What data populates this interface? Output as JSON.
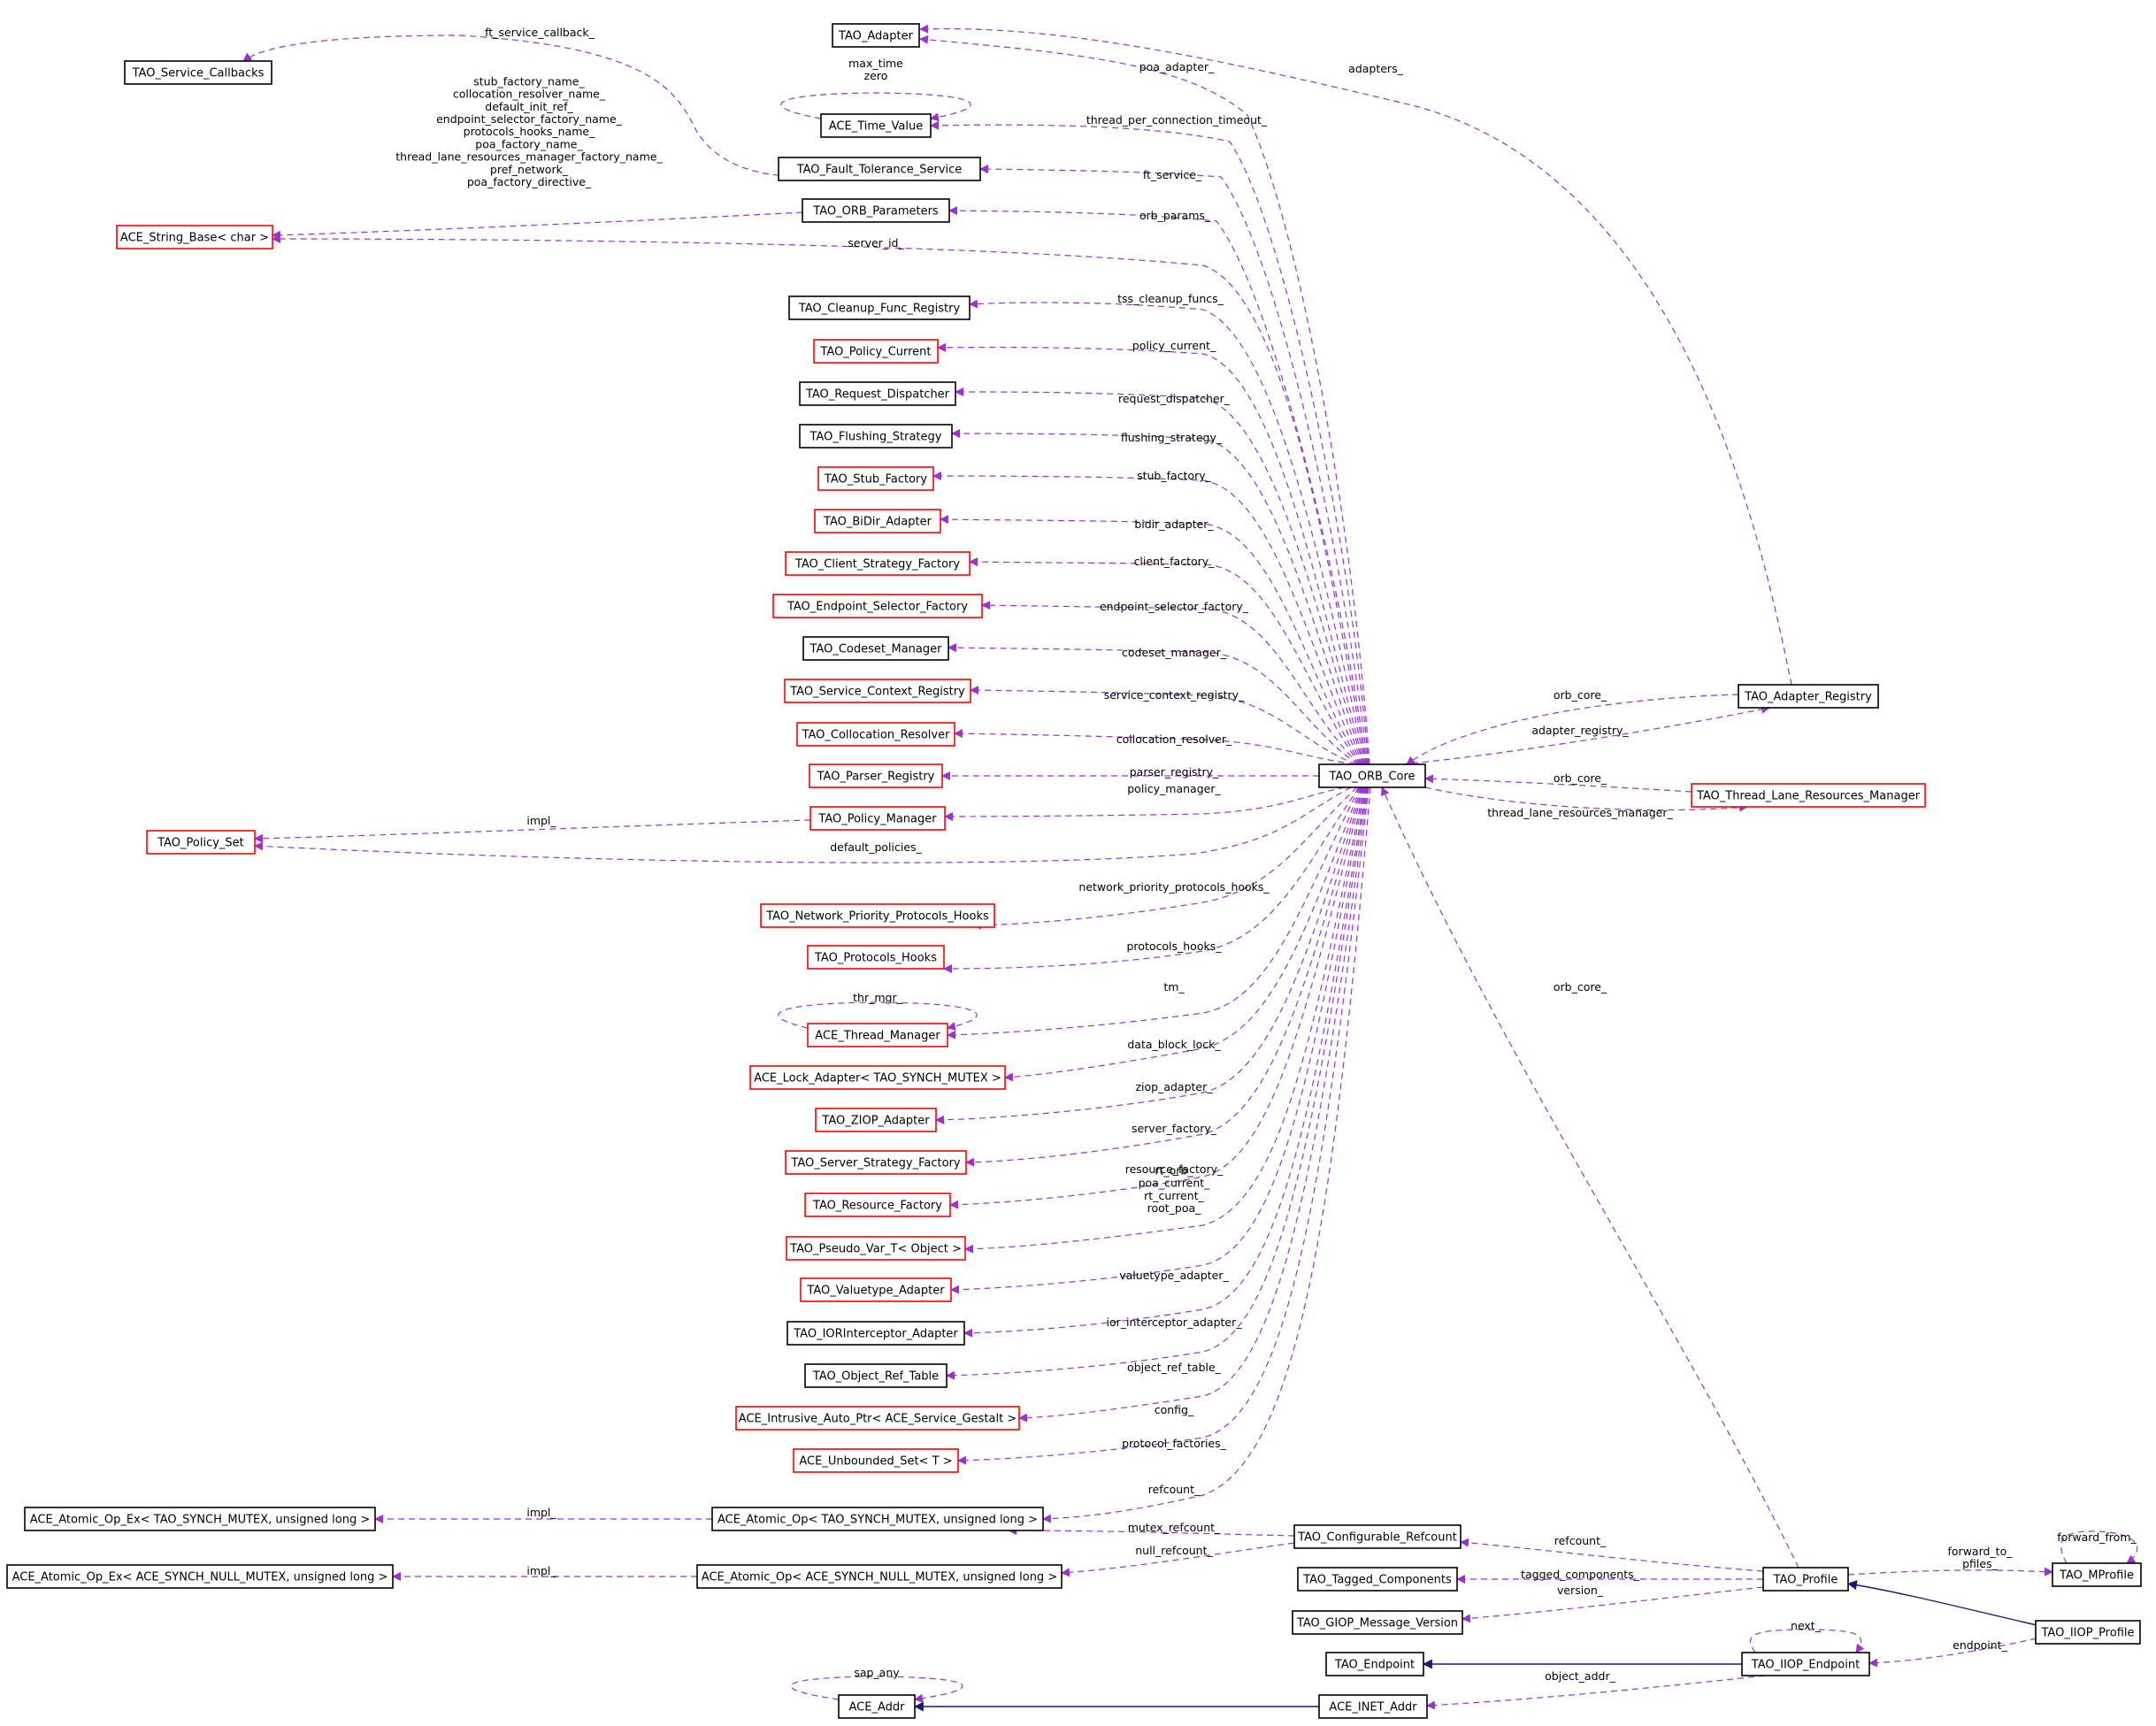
{
  "colors": {
    "border_normal": "#000000",
    "border_truncated": "#ff0000",
    "fill_highlight": "#bfbfbf",
    "usage_edge": "#9a32cd",
    "inheritance_edge": "#191970"
  },
  "nodes": [
    {
      "id": "svc_cb",
      "label": "TAO_Service_Callbacks",
      "style": "normal"
    },
    {
      "id": "adapter",
      "label": "TAO_Adapter",
      "style": "normal"
    },
    {
      "id": "time_value",
      "label": "ACE_Time_Value",
      "style": "normal"
    },
    {
      "id": "ft_service",
      "label": "TAO_Fault_Tolerance_Service",
      "style": "normal"
    },
    {
      "id": "orb_params",
      "label": "TAO_ORB_Parameters",
      "style": "normal"
    },
    {
      "id": "string_base",
      "label": "ACE_String_Base< char >",
      "style": "truncated"
    },
    {
      "id": "cleanup",
      "label": "TAO_Cleanup_Func_Registry",
      "style": "normal"
    },
    {
      "id": "policy_current",
      "label": "TAO_Policy_Current",
      "style": "truncated"
    },
    {
      "id": "req_disp",
      "label": "TAO_Request_Dispatcher",
      "style": "normal"
    },
    {
      "id": "flushing",
      "label": "TAO_Flushing_Strategy",
      "style": "normal"
    },
    {
      "id": "stub_factory",
      "label": "TAO_Stub_Factory",
      "style": "truncated"
    },
    {
      "id": "bidir",
      "label": "TAO_BiDir_Adapter",
      "style": "truncated"
    },
    {
      "id": "client_strat",
      "label": "TAO_Client_Strategy_Factory",
      "style": "truncated"
    },
    {
      "id": "endpoint_sel",
      "label": "TAO_Endpoint_Selector_Factory",
      "style": "truncated"
    },
    {
      "id": "codeset",
      "label": "TAO_Codeset_Manager",
      "style": "normal"
    },
    {
      "id": "svc_ctx",
      "label": "TAO_Service_Context_Registry",
      "style": "truncated"
    },
    {
      "id": "colloc",
      "label": "TAO_Collocation_Resolver",
      "style": "truncated"
    },
    {
      "id": "parser",
      "label": "TAO_Parser_Registry",
      "style": "truncated"
    },
    {
      "id": "policy_mgr",
      "label": "TAO_Policy_Manager",
      "style": "truncated"
    },
    {
      "id": "policy_set",
      "label": "TAO_Policy_Set",
      "style": "truncated"
    },
    {
      "id": "net_prio",
      "label": "TAO_Network_Priority_Protocols_Hooks",
      "style": "truncated"
    },
    {
      "id": "proto_hooks",
      "label": "TAO_Protocols_Hooks",
      "style": "truncated"
    },
    {
      "id": "thread_mgr",
      "label": "ACE_Thread_Manager",
      "style": "truncated"
    },
    {
      "id": "lock_adapter",
      "label": "ACE_Lock_Adapter< TAO_SYNCH_MUTEX >",
      "style": "truncated"
    },
    {
      "id": "ziop",
      "label": "TAO_ZIOP_Adapter",
      "style": "truncated"
    },
    {
      "id": "server_strat",
      "label": "TAO_Server_Strategy_Factory",
      "style": "truncated"
    },
    {
      "id": "resource",
      "label": "TAO_Resource_Factory",
      "style": "truncated"
    },
    {
      "id": "pseudo_var",
      "label": "TAO_Pseudo_Var_T< Object >",
      "style": "truncated"
    },
    {
      "id": "valuetype",
      "label": "TAO_Valuetype_Adapter",
      "style": "truncated"
    },
    {
      "id": "ior_interceptor",
      "label": "TAO_IORInterceptor_Adapter",
      "style": "normal"
    },
    {
      "id": "obj_ref_table",
      "label": "TAO_Object_Ref_Table",
      "style": "normal"
    },
    {
      "id": "intrusive",
      "label": "ACE_Intrusive_Auto_Ptr< ACE_Service_Gestalt >",
      "style": "truncated"
    },
    {
      "id": "unbounded",
      "label": "ACE_Unbounded_Set< T >",
      "style": "truncated"
    },
    {
      "id": "atomic_ex_mutex",
      "label": "ACE_Atomic_Op_Ex< TAO_SYNCH_MUTEX, unsigned long >",
      "style": "normal"
    },
    {
      "id": "atomic_mutex",
      "label": "ACE_Atomic_Op< TAO_SYNCH_MUTEX, unsigned long >",
      "style": "normal"
    },
    {
      "id": "atomic_ex_null",
      "label": "ACE_Atomic_Op_Ex< ACE_SYNCH_NULL_MUTEX, unsigned long >",
      "style": "normal"
    },
    {
      "id": "atomic_null",
      "label": "ACE_Atomic_Op< ACE_SYNCH_NULL_MUTEX, unsigned long >",
      "style": "normal"
    },
    {
      "id": "orb_core",
      "label": "TAO_ORB_Core",
      "style": "normal"
    },
    {
      "id": "adapter_reg",
      "label": "TAO_Adapter_Registry",
      "style": "normal"
    },
    {
      "id": "tlrm",
      "label": "TAO_Thread_Lane_Resources_Manager",
      "style": "truncated"
    },
    {
      "id": "conf_refcount",
      "label": "TAO_Configurable_Refcount",
      "style": "normal"
    },
    {
      "id": "tagged",
      "label": "TAO_Tagged_Components",
      "style": "normal"
    },
    {
      "id": "giop_ver",
      "label": "TAO_GIOP_Message_Version",
      "style": "normal"
    },
    {
      "id": "profile",
      "label": "TAO_Profile",
      "style": "normal"
    },
    {
      "id": "mprofile",
      "label": "TAO_MProfile",
      "style": "normal"
    },
    {
      "id": "iiop_profile",
      "label": "TAO_IIOP_Profile",
      "style": "highlight"
    },
    {
      "id": "endpoint",
      "label": "TAO_Endpoint",
      "style": "normal"
    },
    {
      "id": "iiop_endpoint",
      "label": "TAO_IIOP_Endpoint",
      "style": "normal"
    },
    {
      "id": "ace_addr",
      "label": "ACE_Addr",
      "style": "normal"
    },
    {
      "id": "inet_addr",
      "label": "ACE_INET_Addr",
      "style": "normal"
    }
  ],
  "edges": [
    {
      "from": "ft_service",
      "to": "svc_cb",
      "label": "ft_service_callback_",
      "kind": "usage"
    },
    {
      "from": "orb_core",
      "to": "adapter",
      "label": "poa_adapter_",
      "kind": "usage"
    },
    {
      "from": "adapter_reg",
      "to": "adapter",
      "label": "adapters_",
      "kind": "usage"
    },
    {
      "from": "time_value",
      "to": "time_value",
      "label": "max_time\nzero",
      "kind": "usage"
    },
    {
      "from": "orb_core",
      "to": "time_value",
      "label": "thread_per_connection_timeout_",
      "kind": "usage"
    },
    {
      "from": "orb_core",
      "to": "ft_service",
      "label": "ft_service_",
      "kind": "usage"
    },
    {
      "from": "orb_core",
      "to": "orb_params",
      "label": "orb_params_",
      "kind": "usage"
    },
    {
      "from": "orb_params",
      "to": "string_base",
      "label": "stub_factory_name_\ncollocation_resolver_name_\ndefault_init_ref_\nendpoint_selector_factory_name_\nprotocols_hooks_name_\npoa_factory_name_\nthread_lane_resources_manager_factory_name_\npref_network_\npoa_factory_directive_",
      "kind": "usage"
    },
    {
      "from": "orb_core",
      "to": "string_base",
      "label": "server_id_",
      "kind": "usage"
    },
    {
      "from": "orb_core",
      "to": "cleanup",
      "label": "tss_cleanup_funcs_",
      "kind": "usage"
    },
    {
      "from": "orb_core",
      "to": "policy_current",
      "label": "policy_current_",
      "kind": "usage"
    },
    {
      "from": "orb_core",
      "to": "req_disp",
      "label": "request_dispatcher_",
      "kind": "usage"
    },
    {
      "from": "orb_core",
      "to": "flushing",
      "label": "flushing_strategy_",
      "kind": "usage"
    },
    {
      "from": "orb_core",
      "to": "stub_factory",
      "label": "stub_factory_",
      "kind": "usage"
    },
    {
      "from": "orb_core",
      "to": "bidir",
      "label": "bidir_adapter_",
      "kind": "usage"
    },
    {
      "from": "orb_core",
      "to": "client_strat",
      "label": "client_factory_",
      "kind": "usage"
    },
    {
      "from": "orb_core",
      "to": "endpoint_sel",
      "label": "endpoint_selector_factory_",
      "kind": "usage"
    },
    {
      "from": "orb_core",
      "to": "codeset",
      "label": "codeset_manager_",
      "kind": "usage"
    },
    {
      "from": "orb_core",
      "to": "svc_ctx",
      "label": "service_context_registry_",
      "kind": "usage"
    },
    {
      "from": "orb_core",
      "to": "colloc",
      "label": "collocation_resolver_",
      "kind": "usage"
    },
    {
      "from": "orb_core",
      "to": "parser",
      "label": "parser_registry_",
      "kind": "usage"
    },
    {
      "from": "orb_core",
      "to": "policy_mgr",
      "label": "policy_manager_",
      "kind": "usage"
    },
    {
      "from": "policy_mgr",
      "to": "policy_set",
      "label": "impl_",
      "kind": "usage"
    },
    {
      "from": "orb_core",
      "to": "policy_set",
      "label": "default_policies_",
      "kind": "usage"
    },
    {
      "from": "orb_core",
      "to": "net_prio",
      "label": "network_priority_protocols_hooks_",
      "kind": "usage"
    },
    {
      "from": "orb_core",
      "to": "proto_hooks",
      "label": "protocols_hooks_",
      "kind": "usage"
    },
    {
      "from": "thread_mgr",
      "to": "thread_mgr",
      "label": "thr_mgr_",
      "kind": "usage"
    },
    {
      "from": "orb_core",
      "to": "thread_mgr",
      "label": "tm_",
      "kind": "usage"
    },
    {
      "from": "orb_core",
      "to": "lock_adapter",
      "label": "data_block_lock_",
      "kind": "usage"
    },
    {
      "from": "orb_core",
      "to": "ziop",
      "label": "ziop_adapter_",
      "kind": "usage"
    },
    {
      "from": "orb_core",
      "to": "server_strat",
      "label": "server_factory_",
      "kind": "usage"
    },
    {
      "from": "orb_core",
      "to": "resource",
      "label": "resource_factory_",
      "kind": "usage"
    },
    {
      "from": "orb_core",
      "to": "pseudo_var",
      "label": "rt_orb_\npoa_current_\nrt_current_\nroot_poa_",
      "kind": "usage"
    },
    {
      "from": "orb_core",
      "to": "valuetype",
      "label": "valuetype_adapter_",
      "kind": "usage"
    },
    {
      "from": "orb_core",
      "to": "ior_interceptor",
      "label": "ior_interceptor_adapter_",
      "kind": "usage"
    },
    {
      "from": "orb_core",
      "to": "obj_ref_table",
      "label": "object_ref_table_",
      "kind": "usage"
    },
    {
      "from": "orb_core",
      "to": "intrusive",
      "label": "config_",
      "kind": "usage"
    },
    {
      "from": "orb_core",
      "to": "unbounded",
      "label": "protocol_factories_",
      "kind": "usage"
    },
    {
      "from": "orb_core",
      "to": "atomic_mutex",
      "label": "refcount_",
      "kind": "usage"
    },
    {
      "from": "atomic_mutex",
      "to": "atomic_ex_mutex",
      "label": "impl_",
      "kind": "usage"
    },
    {
      "from": "conf_refcount",
      "to": "atomic_mutex",
      "label": "mutex_refcount_",
      "kind": "usage"
    },
    {
      "from": "conf_refcount",
      "to": "atomic_null",
      "label": "null_refcount_",
      "kind": "usage"
    },
    {
      "from": "atomic_null",
      "to": "atomic_ex_null",
      "label": "impl_",
      "kind": "usage"
    },
    {
      "from": "adapter_reg",
      "to": "orb_core",
      "label": "orb_core_",
      "kind": "usage"
    },
    {
      "from": "orb_core",
      "to": "adapter_reg",
      "label": "adapter_registry_",
      "kind": "usage"
    },
    {
      "from": "tlrm",
      "to": "orb_core",
      "label": "orb_core_",
      "kind": "usage"
    },
    {
      "from": "orb_core",
      "to": "tlrm",
      "label": "thread_lane_resources_manager_",
      "kind": "usage"
    },
    {
      "from": "profile",
      "to": "orb_core",
      "label": "orb_core_",
      "kind": "usage"
    },
    {
      "from": "profile",
      "to": "conf_refcount",
      "label": "refcount_",
      "kind": "usage"
    },
    {
      "from": "profile",
      "to": "tagged",
      "label": "tagged_components_",
      "kind": "usage"
    },
    {
      "from": "profile",
      "to": "giop_ver",
      "label": "version_",
      "kind": "usage"
    },
    {
      "from": "profile",
      "to": "mprofile",
      "label": "forward_to_\npfiles_",
      "kind": "usage"
    },
    {
      "from": "mprofile",
      "to": "mprofile",
      "label": "forward_from_",
      "kind": "usage"
    },
    {
      "from": "iiop_profile",
      "to": "profile",
      "label": "",
      "kind": "inherit"
    },
    {
      "from": "iiop_profile",
      "to": "iiop_endpoint",
      "label": "endpoint_",
      "kind": "usage"
    },
    {
      "from": "iiop_endpoint",
      "to": "iiop_endpoint",
      "label": "next_",
      "kind": "usage"
    },
    {
      "from": "iiop_endpoint",
      "to": "endpoint",
      "label": "",
      "kind": "inherit"
    },
    {
      "from": "iiop_endpoint",
      "to": "inet_addr",
      "label": "object_addr_",
      "kind": "usage"
    },
    {
      "from": "ace_addr",
      "to": "ace_addr",
      "label": "sap_any",
      "kind": "usage"
    },
    {
      "from": "inet_addr",
      "to": "ace_addr",
      "label": "",
      "kind": "inherit"
    }
  ]
}
